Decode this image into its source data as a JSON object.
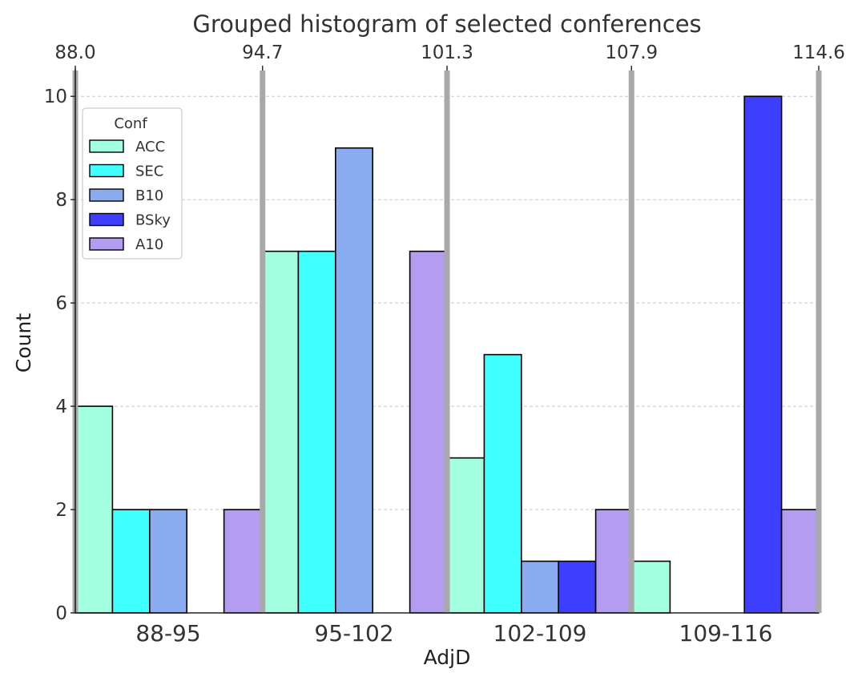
{
  "chart_data": {
    "type": "bar",
    "title": "Grouped histogram of selected conferences",
    "xlabel": "AdjD",
    "ylabel": "Count",
    "categories": [
      "88-95",
      "95-102",
      "102-109",
      "109-116"
    ],
    "bin_edges": [
      88.0,
      94.7,
      101.3,
      107.9,
      114.6
    ],
    "top_tick_labels": [
      "88.0",
      "94.7",
      "101.3",
      "107.9",
      "114.6"
    ],
    "ylim": [
      0,
      10.5
    ],
    "yticks": [
      0,
      2,
      4,
      6,
      8,
      10
    ],
    "grid": "y-dashed",
    "legend": {
      "title": "Conf",
      "placement": "upper-left"
    },
    "series": [
      {
        "name": "ACC",
        "color": "#a2ffe0",
        "values": [
          4,
          7,
          3,
          1
        ]
      },
      {
        "name": "SEC",
        "color": "#40ffff",
        "values": [
          2,
          7,
          5,
          0
        ]
      },
      {
        "name": "B10",
        "color": "#8aabf0",
        "values": [
          2,
          9,
          1,
          0
        ]
      },
      {
        "name": "BSky",
        "color": "#3e3eff",
        "values": [
          0,
          0,
          1,
          10
        ]
      },
      {
        "name": "A10",
        "color": "#b49cf0",
        "values": [
          2,
          7,
          2,
          2
        ]
      }
    ]
  }
}
